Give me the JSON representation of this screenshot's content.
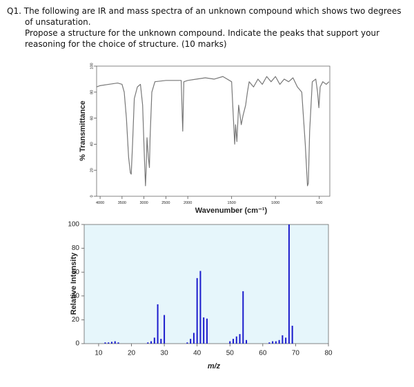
{
  "question": {
    "number": "Q1.",
    "text": "The following are IR and mass spectra of an unknown compound which shows two degrees of unsaturation.",
    "instructions": "Propose a structure for the unknown compound. Indicate the peaks that support your reasoning for the choice of structure. (10 marks)"
  },
  "chart_data": [
    {
      "type": "line",
      "x_label": "Wavenumber (cm⁻¹)",
      "y_label": "% Transmittance",
      "x": [
        4080,
        4000,
        3800,
        3600,
        3500,
        3450,
        3400,
        3350,
        3310,
        3290,
        3260,
        3220,
        3150,
        3080,
        3030,
        2990,
        2965,
        2950,
        2930,
        2900,
        2875,
        2860,
        2820,
        2750,
        2500,
        2300,
        2150,
        2125,
        2115,
        2105,
        2090,
        2000,
        1900,
        1800,
        1700,
        1600,
        1500,
        1480,
        1465,
        1455,
        1440,
        1420,
        1390,
        1370,
        1340,
        1320,
        1300,
        1250,
        1200,
        1150,
        1100,
        1050,
        1000,
        950,
        900,
        850,
        800,
        750,
        700,
        660,
        635,
        625,
        610,
        580,
        540,
        520,
        505,
        490,
        460,
        420,
        390
      ],
      "values": [
        84,
        85,
        86,
        87,
        86,
        80,
        60,
        30,
        18,
        17,
        40,
        75,
        84,
        86,
        70,
        30,
        8,
        20,
        45,
        30,
        22,
        45,
        80,
        88,
        89,
        89,
        89,
        60,
        50,
        65,
        88,
        89,
        90,
        91,
        90,
        92,
        88,
        60,
        40,
        55,
        42,
        70,
        55,
        62,
        70,
        80,
        88,
        84,
        90,
        86,
        92,
        88,
        92,
        86,
        90,
        88,
        91,
        84,
        80,
        40,
        8,
        10,
        50,
        88,
        90,
        80,
        68,
        84,
        88,
        86,
        88
      ],
      "color": "#777777",
      "xlim": [
        4080,
        380
      ],
      "x_scale_break": 2000,
      "xticks": [
        4000,
        3500,
        3000,
        2500,
        2000,
        1500,
        1000,
        500
      ],
      "ylim": [
        0,
        100
      ],
      "yticks": [
        0,
        20,
        40,
        60,
        80,
        100
      ]
    },
    {
      "type": "bar",
      "x_label": "m/z",
      "y_label": "Relative Intensity",
      "x": [
        12,
        13,
        14,
        15,
        16,
        25,
        26,
        27,
        28,
        29,
        30,
        37,
        38,
        39,
        40,
        41,
        42,
        43,
        50,
        51,
        52,
        53,
        54,
        55,
        62,
        63,
        64,
        65,
        66,
        67,
        68,
        69
      ],
      "values": [
        1,
        1,
        1.5,
        2,
        1,
        1,
        2,
        5,
        33,
        4,
        24,
        1,
        4,
        9,
        55,
        61,
        22,
        21,
        2,
        4,
        6,
        8,
        44,
        3,
        1,
        2,
        2,
        3,
        7,
        5,
        100,
        15
      ],
      "color": "#1a1acc",
      "xlim": [
        5.6,
        80
      ],
      "xticks": [
        10,
        20,
        30,
        40,
        50,
        60,
        70,
        80
      ],
      "ylim": [
        0,
        100
      ],
      "yticks": [
        0,
        20,
        40,
        60,
        80,
        100
      ]
    }
  ]
}
